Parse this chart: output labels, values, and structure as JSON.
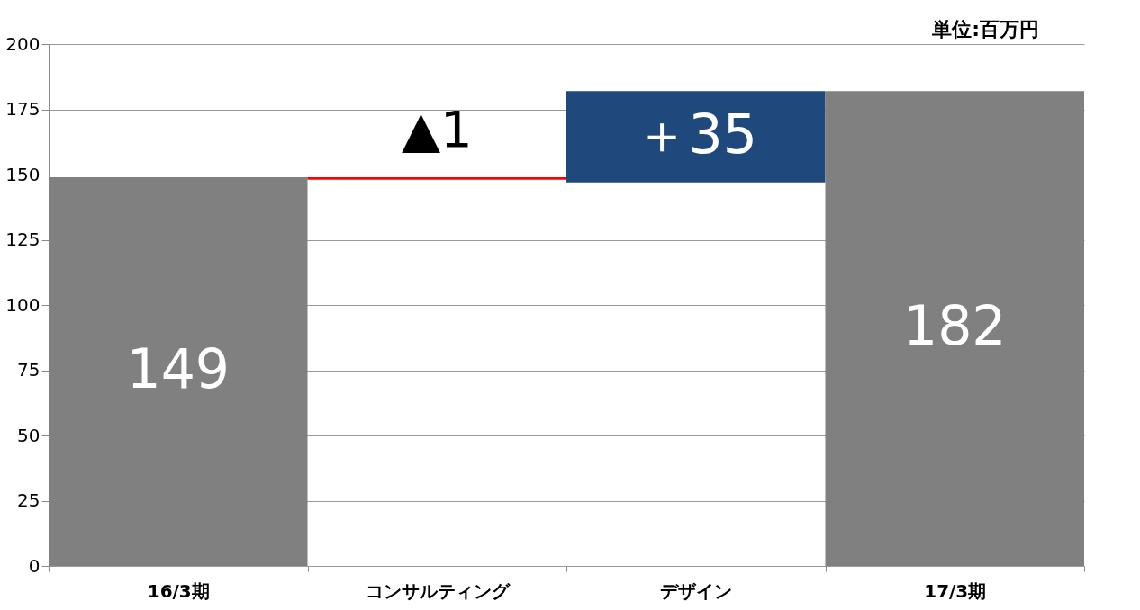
{
  "chart_data": {
    "type": "bar",
    "categories": [
      "16/3期",
      "コンサルティング",
      "デザイン",
      "17/3期"
    ],
    "values": [
      149,
      -1,
      35,
      182
    ],
    "base": [
      0,
      149,
      147,
      0
    ],
    "colors": [
      "#808080",
      "#ff0000",
      "#1f497d",
      "#808080"
    ],
    "value_labels": [
      "149",
      "▲1",
      "＋35",
      "182"
    ],
    "ylim": [
      0,
      200
    ],
    "yticks": [
      0,
      25,
      50,
      75,
      100,
      125,
      150,
      175,
      200
    ],
    "grid": "y",
    "annotations": [
      "単位:百万円"
    ]
  }
}
